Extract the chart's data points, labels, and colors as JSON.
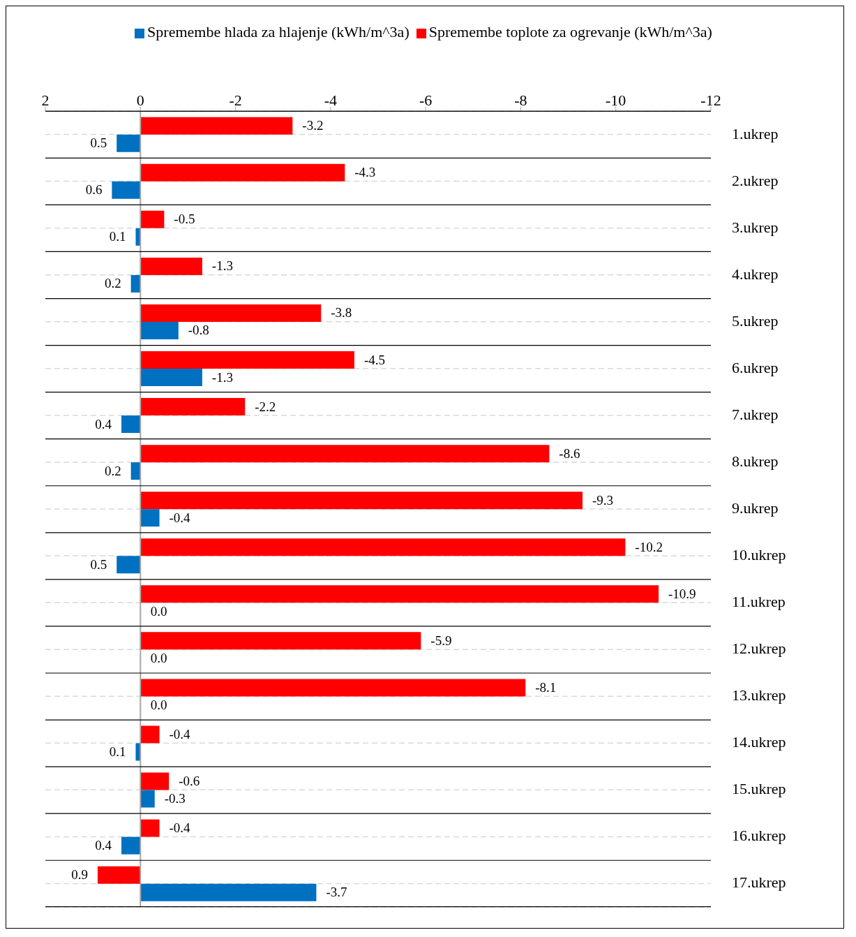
{
  "chart_data": {
    "type": "bar",
    "orientation": "horizontal",
    "categories": [
      "1.ukrep",
      "2.ukrep",
      "3.ukrep",
      "4.ukrep",
      "5.ukrep",
      "6.ukrep",
      "7.ukrep",
      "8.ukrep",
      "9.ukrep",
      "10.ukrep",
      "11.ukrep",
      "12.ukrep",
      "13.ukrep",
      "14.ukrep",
      "15.ukrep",
      "16.ukrep",
      "17.ukrep"
    ],
    "series": [
      {
        "name": "Spremembe toplote za ogrevanje (kWh/m^3a)",
        "color": "#ff0000",
        "values": [
          -3.2,
          -4.3,
          -0.5,
          -1.3,
          -3.8,
          -4.5,
          -2.2,
          -8.6,
          -9.3,
          -10.2,
          -10.9,
          -5.9,
          -8.1,
          -0.4,
          -0.6,
          -0.4,
          0.9
        ],
        "value_labels": [
          "-3.2",
          "-4.3",
          "-0.5",
          "-1.3",
          "-3.8",
          "-4.5",
          "-2.2",
          "-8.6",
          "-9.3",
          "-10.2",
          "-10.9",
          "-5.9",
          "-8.1",
          "-0.4",
          "-0.6",
          "-0.4",
          "0.9"
        ]
      },
      {
        "name": "Spremembe hlada za hlajenje (kWh/m^3a)",
        "color": "#0070c0",
        "values": [
          0.5,
          0.6,
          0.1,
          0.2,
          -0.8,
          -1.3,
          0.4,
          0.2,
          -0.4,
          0.5,
          0.0,
          0.0,
          0.0,
          0.1,
          -0.3,
          0.4,
          -3.7
        ],
        "value_labels": [
          "0.5",
          "0.6",
          "0.1",
          "0.2",
          "-0.8",
          "-1.3",
          "0.4",
          "0.2",
          "-0.4",
          "0.5",
          "0.0",
          "0.0",
          "0.0",
          "0.1",
          "-0.3",
          "0.4",
          "-3.7"
        ]
      }
    ],
    "xlim": [
      2,
      -12
    ],
    "xticks": [
      2,
      0,
      -2,
      -4,
      -6,
      -8,
      -10,
      -12
    ],
    "ref_lines": [
      {
        "axis": "x",
        "value": 0,
        "color": "#a6a6a6"
      }
    ],
    "grid": "y",
    "legend": "top"
  }
}
